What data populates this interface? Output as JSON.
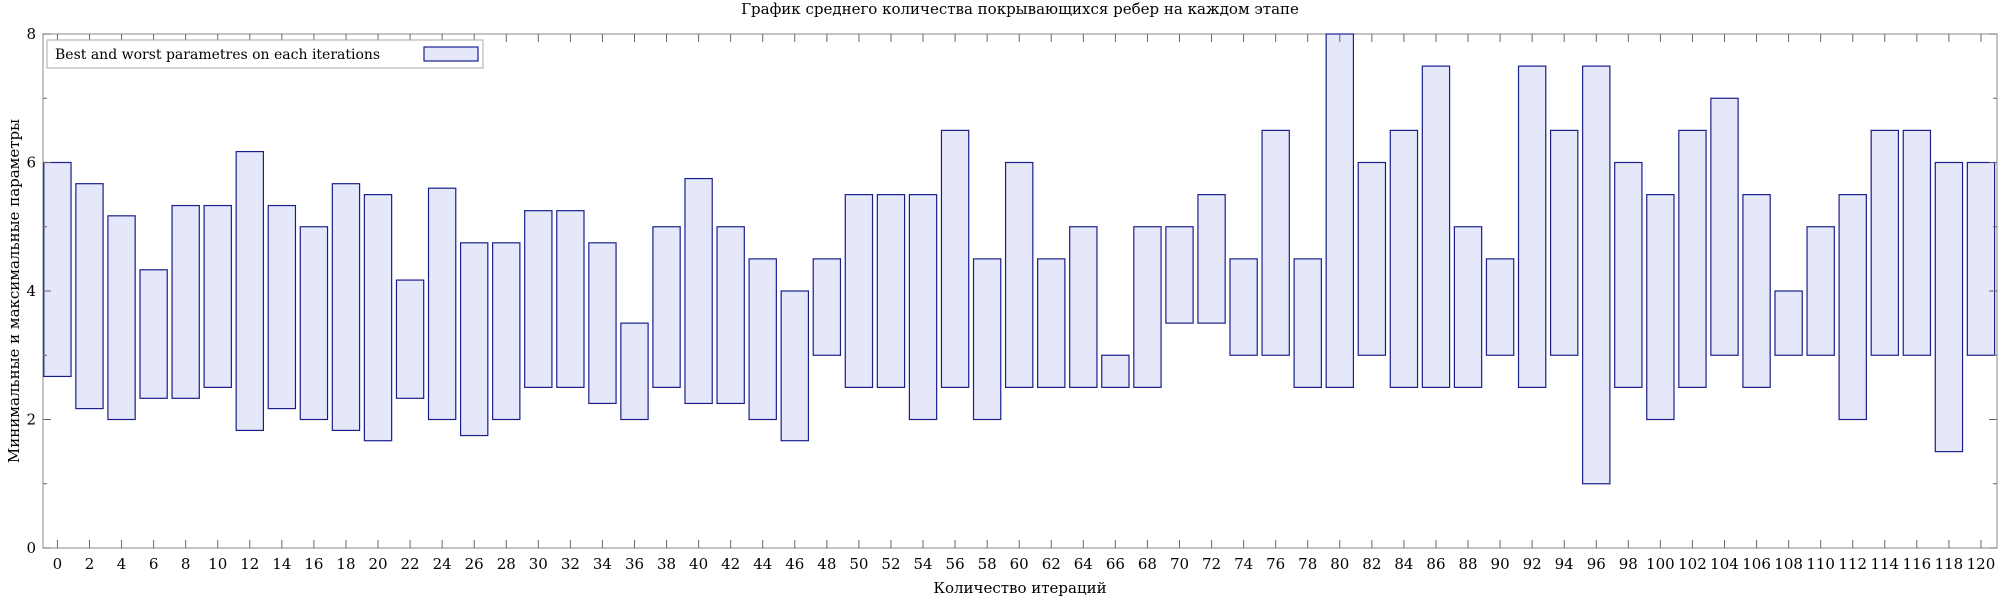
{
  "chart_data": {
    "type": "bar",
    "title": "График среднего количества покрывающихся ребер на каждом этапе",
    "xlabel": "Количество итераций",
    "ylabel": "Минимальные и максимальные параметры",
    "legend": {
      "label": "Best and worst parametres on each iterations",
      "placement": "top-left"
    },
    "xlim": [
      -0.9,
      121
    ],
    "ylim": [
      0,
      8
    ],
    "x_ticks": [
      0,
      2,
      4,
      6,
      8,
      10,
      12,
      14,
      16,
      18,
      20,
      22,
      24,
      26,
      28,
      30,
      32,
      34,
      36,
      38,
      40,
      42,
      44,
      46,
      48,
      50,
      52,
      54,
      56,
      58,
      60,
      62,
      64,
      66,
      68,
      70,
      72,
      74,
      76,
      78,
      80,
      82,
      84,
      86,
      88,
      90,
      92,
      94,
      96,
      98,
      100,
      102,
      104,
      106,
      108,
      110,
      112,
      114,
      116,
      118,
      120
    ],
    "y_ticks": [
      0,
      2,
      4,
      6,
      8
    ],
    "grid": false,
    "colors": {
      "bar_fill": "#e5e8fa",
      "bar_stroke": "#1a1f8c",
      "axis": "#888888"
    },
    "series": [
      {
        "name": "Best and worst parametres on each iterations",
        "x": [
          0,
          2,
          4,
          6,
          8,
          10,
          12,
          14,
          16,
          18,
          20,
          22,
          24,
          26,
          28,
          30,
          32,
          34,
          36,
          38,
          40,
          42,
          44,
          46,
          48,
          50,
          52,
          54,
          56,
          58,
          60,
          62,
          64,
          66,
          68,
          70,
          72,
          74,
          76,
          78,
          80,
          82,
          84,
          86,
          88,
          90,
          92,
          94,
          96,
          98,
          100,
          102,
          104,
          106,
          108,
          110,
          112,
          114,
          116,
          118,
          120
        ],
        "low": [
          2.67,
          2.17,
          2.0,
          2.33,
          2.33,
          2.5,
          1.83,
          2.17,
          2.0,
          1.83,
          1.67,
          2.33,
          2.0,
          1.75,
          2.0,
          2.5,
          2.5,
          2.25,
          2.0,
          2.5,
          2.25,
          2.25,
          2.0,
          1.67,
          3.0,
          2.5,
          2.5,
          2.0,
          2.5,
          2.0,
          2.5,
          2.5,
          2.5,
          2.5,
          2.5,
          3.5,
          3.5,
          3.0,
          3.0,
          2.5,
          2.5,
          3.0,
          2.5,
          2.5,
          2.5,
          3.0,
          2.5,
          3.0,
          1.0,
          2.5,
          2.0,
          2.5,
          3.0,
          2.5,
          3.0,
          3.0,
          2.0,
          3.0,
          3.0,
          1.5,
          3.0
        ],
        "high": [
          6.0,
          5.67,
          5.17,
          4.33,
          5.33,
          5.33,
          6.17,
          5.33,
          5.0,
          5.67,
          5.5,
          4.17,
          5.6,
          4.75,
          4.75,
          5.25,
          5.25,
          4.75,
          3.5,
          5.0,
          5.75,
          5.0,
          4.5,
          4.0,
          4.5,
          5.5,
          5.5,
          5.5,
          6.5,
          4.5,
          6.0,
          4.5,
          5.0,
          3.0,
          5.0,
          5.0,
          5.5,
          4.5,
          6.5,
          4.5,
          8.0,
          6.0,
          6.5,
          7.5,
          5.0,
          4.5,
          7.5,
          6.5,
          7.5,
          6.0,
          5.5,
          6.5,
          7.0,
          5.5,
          4.0,
          5.0,
          5.5,
          6.5,
          6.5,
          6.0,
          6.0
        ]
      }
    ]
  }
}
